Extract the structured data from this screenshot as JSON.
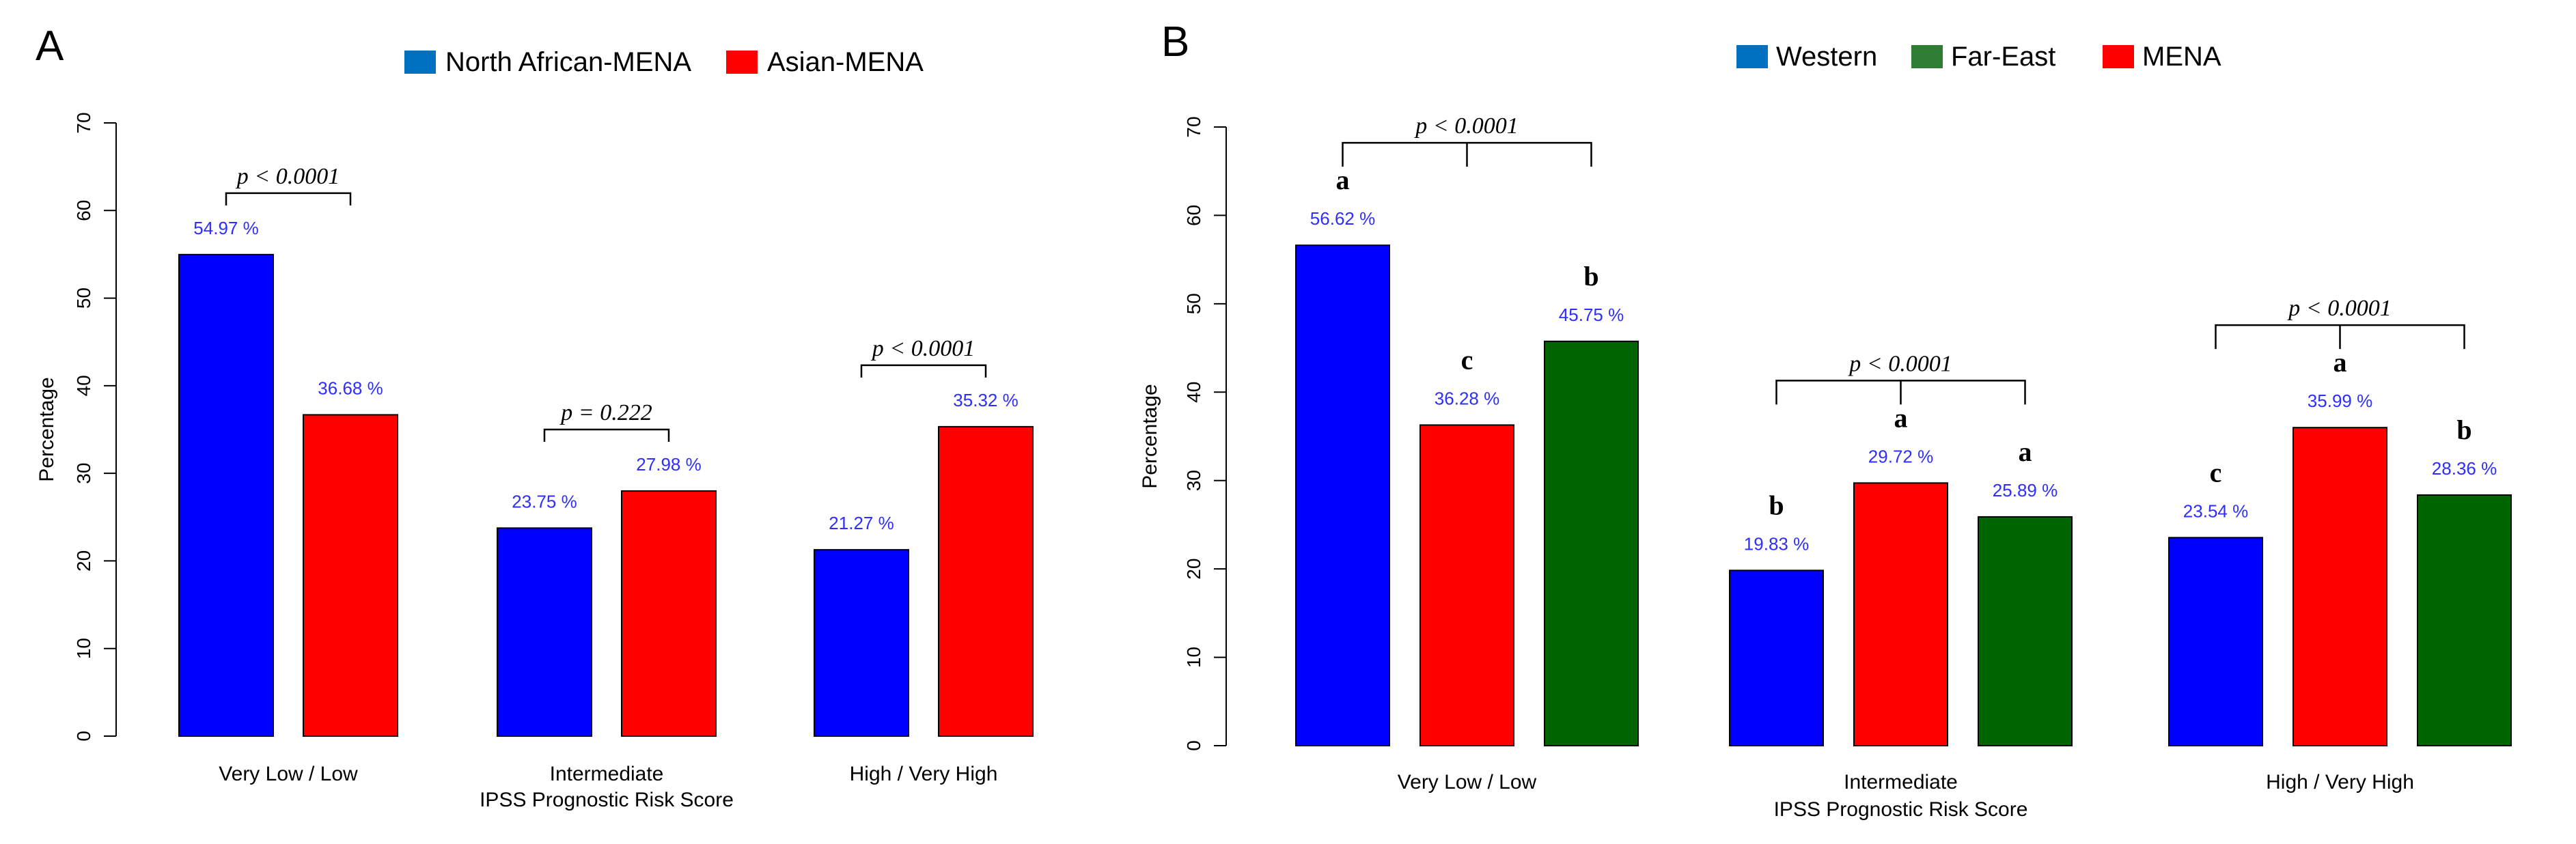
{
  "chart_data": [
    {
      "type": "bar",
      "panel_label": "A",
      "categories": [
        "Very Low / Low",
        "Intermediate",
        "High / Very High"
      ],
      "xlabel": "IPSS Prognostic Risk Score",
      "ylabel": "Percentage",
      "ylim": [
        0,
        70
      ],
      "yticks": [
        0,
        10,
        20,
        30,
        40,
        50,
        60,
        70
      ],
      "series": [
        {
          "name": "North African-MENA",
          "color": "#0000FF",
          "values": [
            54.97,
            23.75,
            21.27
          ],
          "labels": [
            "54.97 %",
            "23.75 %",
            "21.27 %"
          ]
        },
        {
          "name": "Asian-MENA",
          "color": "#FF0000",
          "values": [
            36.68,
            27.98,
            35.32
          ],
          "labels": [
            "36.68 %",
            "27.98 %",
            "35.32 %"
          ]
        }
      ],
      "legend_swatch_colors": [
        "#0070C0",
        "#FF0000"
      ],
      "label_color": "#2E2EFF",
      "significance_letters": [],
      "p_values": [
        "p < 0.0001",
        "p = 0.222",
        "p < 0.0001"
      ],
      "legend_position": "top"
    },
    {
      "type": "bar",
      "panel_label": "B",
      "categories": [
        "Very Low / Low",
        "Intermediate",
        "High / Very High"
      ],
      "xlabel": "IPSS Prognostic Risk Score",
      "ylabel": "Percentage",
      "ylim": [
        0,
        70
      ],
      "yticks": [
        0,
        10,
        20,
        30,
        40,
        50,
        60,
        70
      ],
      "series": [
        {
          "name": "Western",
          "color": "#0000FF",
          "values": [
            56.62,
            19.83,
            23.54
          ],
          "labels": [
            "56.62 %",
            "19.83 %",
            "23.54 %"
          ]
        },
        {
          "name": "MENA",
          "color": "#FF0000",
          "values": [
            36.28,
            29.72,
            35.99
          ],
          "labels": [
            "36.28 %",
            "29.72 %",
            "35.99 %"
          ]
        },
        {
          "name": "Far-East",
          "color": "#006400",
          "values": [
            45.75,
            25.89,
            28.36
          ],
          "labels": [
            "45.75 %",
            "25.89 %",
            "28.36 %"
          ]
        }
      ],
      "legend_order": [
        "Western",
        "Far-East",
        "MENA"
      ],
      "legend_swatch_colors": {
        "Western": "#0070C0",
        "Far-East": "#2E7D32",
        "MENA": "#FF0000"
      },
      "label_color": "#2E2EFF",
      "significance_letters": [
        [
          "a",
          "c",
          "b"
        ],
        [
          "b",
          "a",
          "a"
        ],
        [
          "c",
          "a",
          "b"
        ]
      ],
      "p_values": [
        "p < 0.0001",
        "p < 0.0001",
        "p < 0.0001"
      ],
      "legend_position": "top"
    }
  ]
}
